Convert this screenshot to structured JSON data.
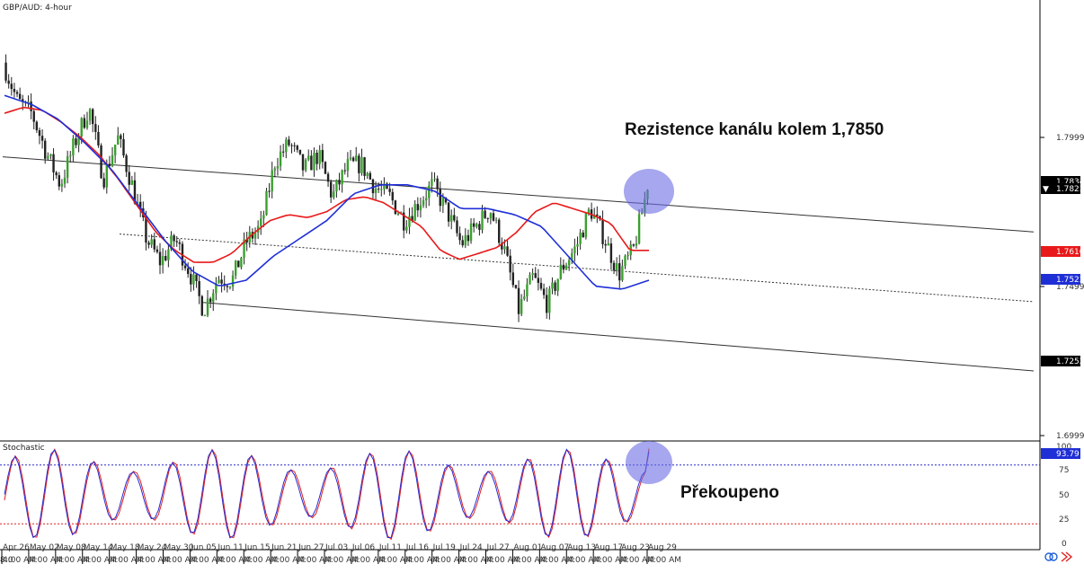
{
  "main_title": "GBP/AUD: 4-hour",
  "indicator_title": "Stochastic",
  "annotations": {
    "resistance": "Rezistence kanálu kolem 1,7850",
    "overbought": "Překoupeno"
  },
  "time_axis": {
    "left_edge": "8:0",
    "dates": [
      "Apr 26",
      "May 02",
      "May 08",
      "May 14",
      "May 18",
      "May 24",
      "May 30",
      "Jun 05",
      "Jun 11",
      "Jun 15",
      "Jun 21",
      "Jun 27",
      "Jul 03",
      "Jul 06",
      "Jul 11",
      "Jul 16",
      "Jul 19",
      "Jul 24",
      "Jul 27",
      "Aug 01",
      "Aug 07",
      "Aug 13",
      "Aug 17",
      "Aug 23",
      "Aug 29"
    ],
    "time_label": "4:00 AM"
  },
  "price_axis": {
    "ticks": [
      "1.7999",
      "1.7499",
      "1.6999"
    ],
    "badges": {
      "last_price": "1.7823",
      "behind_last": "1.7834",
      "ma_red": "1.7616",
      "ma_blue": "1.7523",
      "low_level": "1.7252"
    }
  },
  "stoch_axis": {
    "ticks": [
      "100",
      "75",
      "50",
      "25",
      "0"
    ],
    "badge": "93.79"
  },
  "colors": {
    "ma_red": "#e8191a",
    "ma_blue": "#1f2fd6",
    "bull_candle": "#3aa02e",
    "bear_candle": "#222222",
    "highlight": "#6b6de3",
    "stoch_upper": "#2a2ad0",
    "stoch_lower": "#e02020"
  },
  "chart_data": {
    "type": "candlestick",
    "price_range": [
      1.6999,
      1.8299
    ],
    "close_approx": [
      1.825,
      1.812,
      1.808,
      1.795,
      1.784,
      1.798,
      1.81,
      1.786,
      1.8,
      1.784,
      1.766,
      1.758,
      1.766,
      1.755,
      1.742,
      1.753,
      1.752,
      1.765,
      1.77,
      1.792,
      1.798,
      1.789,
      1.794,
      1.78,
      1.79,
      1.791,
      1.783,
      1.78,
      1.772,
      1.778,
      1.784,
      1.775,
      1.764,
      1.77,
      1.776,
      1.762,
      1.742,
      1.753,
      1.744,
      1.756,
      1.763,
      1.776,
      1.766,
      1.754,
      1.762,
      1.783
    ],
    "ma_red": [
      1.808,
      1.81,
      1.809,
      1.805,
      1.8,
      1.794,
      1.786,
      1.777,
      1.768,
      1.762,
      1.758,
      1.758,
      1.761,
      1.767,
      1.772,
      1.774,
      1.773,
      1.775,
      1.779,
      1.78,
      1.778,
      1.774,
      1.77,
      1.762,
      1.759,
      1.761,
      1.763,
      1.768,
      1.775,
      1.778,
      1.776,
      1.774,
      1.771,
      1.762,
      1.762
    ],
    "ma_blue": [
      1.814,
      1.811,
      1.806,
      1.798,
      1.789,
      1.777,
      1.765,
      1.755,
      1.75,
      1.752,
      1.76,
      1.766,
      1.772,
      1.781,
      1.784,
      1.784,
      1.782,
      1.776,
      1.776,
      1.774,
      1.77,
      1.76,
      1.75,
      1.749,
      1.752
    ],
    "channel_upper": [
      [
        3,
        1.7934
      ],
      [
        1150,
        1.7682
      ]
    ],
    "channel_mid": [
      [
        133,
        1.7675
      ],
      [
        1150,
        1.7448
      ]
    ],
    "channel_lower": [
      [
        224,
        1.7446
      ],
      [
        1150,
        1.7216
      ]
    ],
    "stochastic": {
      "upper_level": 80,
      "lower_level": 20,
      "last": 93.79
    },
    "note_levels": [
      "1.7850"
    ]
  }
}
